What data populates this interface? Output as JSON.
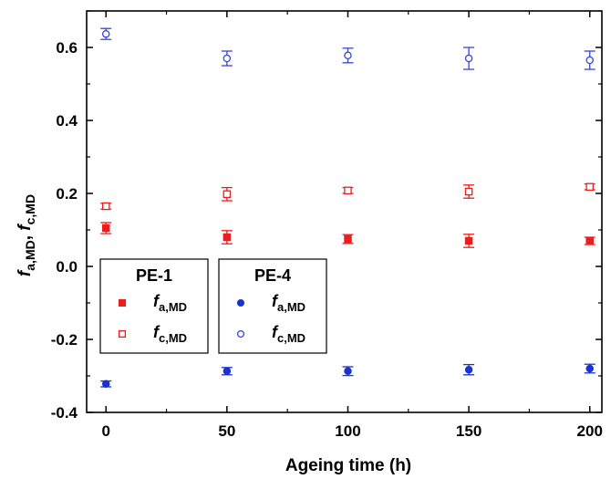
{
  "chart_data": {
    "type": "scatter",
    "xlabel": "Ageing time (h)",
    "ylabel": {
      "prefix": "f",
      "sub_a": "a,MD",
      "sep": ", ",
      "prefix2": "f",
      "sub_c": "c,MD"
    },
    "xlim": [
      -8,
      205
    ],
    "ylim": [
      -0.4,
      0.7
    ],
    "xticks": [
      0,
      50,
      100,
      150,
      200
    ],
    "yticks": [
      -0.4,
      -0.2,
      0.0,
      0.2,
      0.4,
      0.6
    ],
    "ytick_labels": [
      "-0.4",
      "-0.2",
      "0.0",
      "0.2",
      "0.4",
      "0.6"
    ],
    "x": [
      0,
      50,
      100,
      150,
      200
    ],
    "legend_groups": [
      {
        "title": "PE-1",
        "entries": [
          {
            "label_main": "f",
            "label_sub": "a,MD",
            "series": 0
          },
          {
            "label_main": "f",
            "label_sub": "c,MD",
            "series": 1
          }
        ]
      },
      {
        "title": "PE-4",
        "entries": [
          {
            "label_main": "f",
            "label_sub": "a,MD",
            "series": 2
          },
          {
            "label_main": "f",
            "label_sub": "c,MD",
            "series": 3
          }
        ]
      }
    ],
    "series": [
      {
        "group": "PE-1",
        "marker": "square",
        "filled": true,
        "color": "#ee1c1c",
        "values": [
          0.105,
          0.08,
          0.075,
          0.07,
          0.07
        ],
        "errors": [
          0.015,
          0.018,
          0.012,
          0.018,
          0.01
        ]
      },
      {
        "group": "PE-1",
        "marker": "square",
        "filled": false,
        "color": "#ee1c1c",
        "values": [
          0.165,
          0.198,
          0.208,
          0.205,
          0.218
        ],
        "errors": [
          0.008,
          0.018,
          0.008,
          0.018,
          0.008
        ]
      },
      {
        "group": "PE-4",
        "marker": "circle",
        "filled": true,
        "color": "#1a33cc",
        "values": [
          -0.322,
          -0.287,
          -0.287,
          -0.283,
          -0.28
        ],
        "errors": [
          0.008,
          0.01,
          0.012,
          0.014,
          0.012
        ]
      },
      {
        "group": "PE-4",
        "marker": "circle",
        "filled": false,
        "color": "#3344dd",
        "values": [
          0.637,
          0.57,
          0.578,
          0.57,
          0.565
        ],
        "errors": [
          0.015,
          0.02,
          0.02,
          0.03,
          0.025
        ]
      }
    ]
  }
}
